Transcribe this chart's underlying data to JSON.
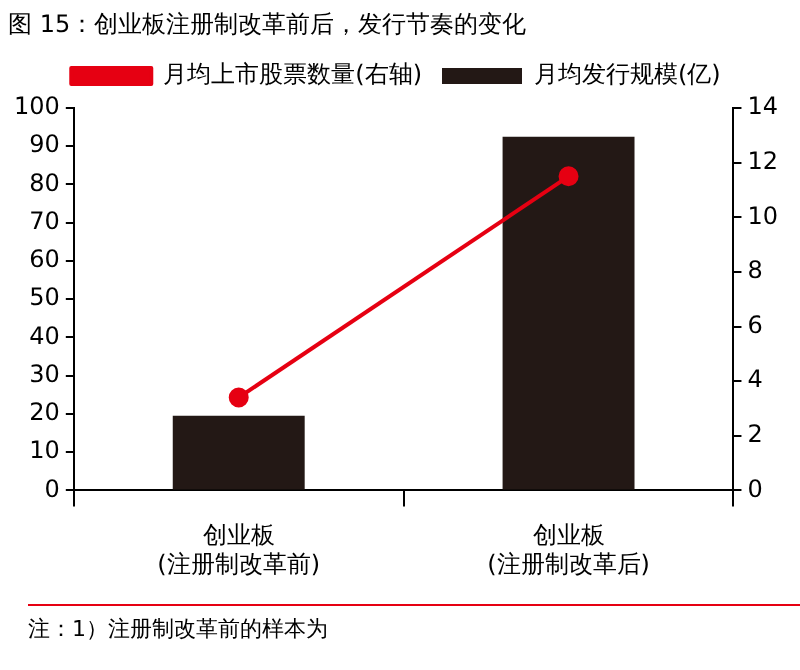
{
  "chart_data": {
    "type": "bar",
    "title": "图 15：创业板注册制改革前后，发行节奏的变化",
    "categories": [
      "创业板\n(注册制改革前)",
      "创业板\n(注册制改革后)"
    ],
    "series": [
      {
        "name": "月均发行规模(亿)",
        "color": "#231815",
        "values": [
          19.5,
          92.5
        ]
      },
      {
        "name": "月均上市股票数量(右轴)",
        "type": "line",
        "axis": "y2",
        "color": "#e60012",
        "values": [
          3.4,
          11.5
        ],
        "marker": "circle"
      }
    ],
    "ylim": [
      0,
      100
    ],
    "yticks": [
      0,
      10,
      20,
      30,
      40,
      50,
      60,
      70,
      80,
      90,
      100
    ],
    "y2lim": [
      0,
      14
    ],
    "y2ticks": [
      0,
      2,
      4,
      6,
      8,
      10,
      12,
      14
    ],
    "grid": false,
    "legend": "top",
    "annotations": [
      "注：1）注册制改革前的样本为"
    ]
  }
}
